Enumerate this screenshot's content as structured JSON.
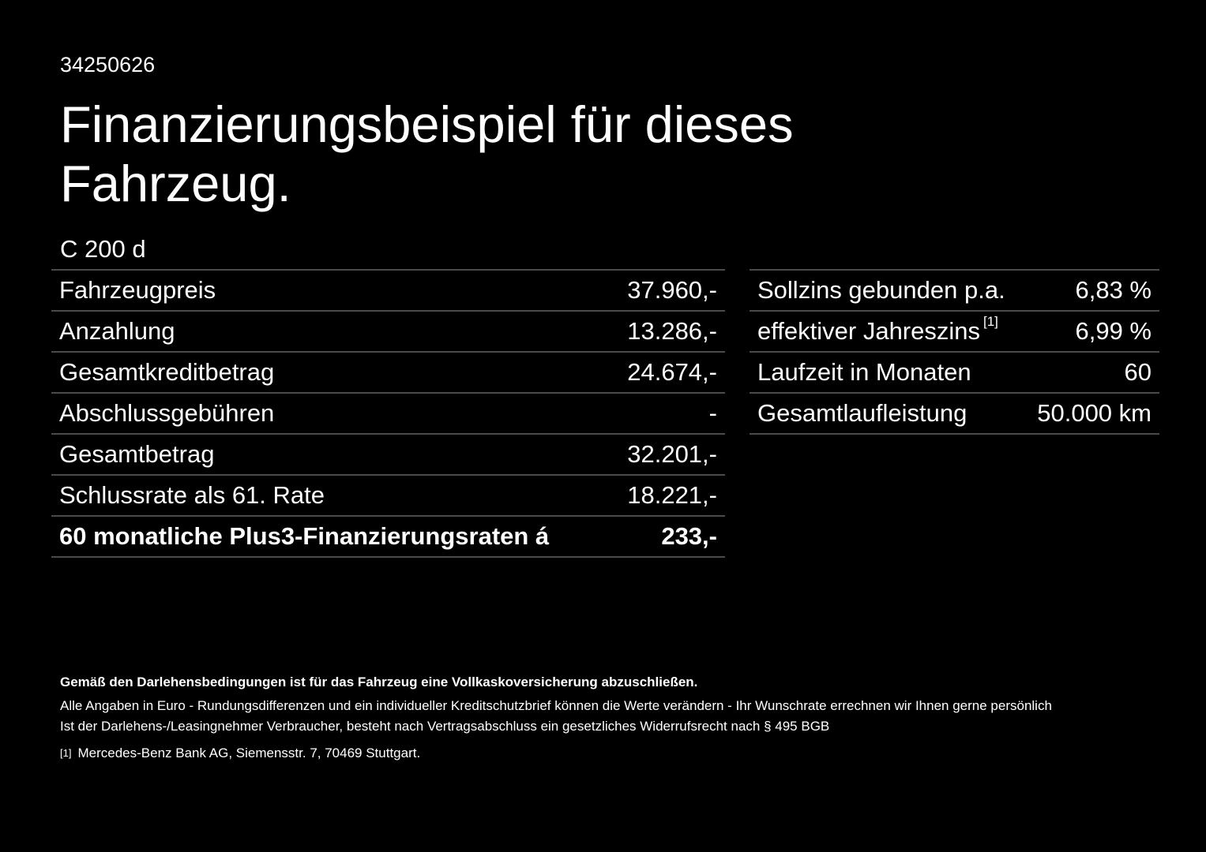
{
  "reference": "34250626",
  "title": "Finanzierungsbeispiel für dieses Fahrzeug.",
  "model": "C 200 d",
  "left_table": [
    {
      "label": "Fahrzeugpreis",
      "value": "37.960,-"
    },
    {
      "label": "Anzahlung",
      "value": "13.286,-"
    },
    {
      "label": "Gesamtkreditbetrag",
      "value": "24.674,-"
    },
    {
      "label": "Abschlussgebühren",
      "value": "-"
    },
    {
      "label": "Gesamtbetrag",
      "value": "32.201,-"
    },
    {
      "label": "Schlussrate als 61. Rate",
      "value": "18.221,-"
    },
    {
      "label": "60 monatliche Plus3-Finanzierungsraten á",
      "value": "233,-"
    }
  ],
  "right_table": [
    {
      "label": "Sollzins gebunden p.a.",
      "value": "6,83 %"
    },
    {
      "label": "effektiver Jahreszins",
      "sup": "[1]",
      "value": "6,99 %"
    },
    {
      "label": "Laufzeit in Monaten",
      "value": "60"
    },
    {
      "label": "Gesamtlaufleistung",
      "value": "50.000 km"
    }
  ],
  "footer": {
    "insurance_note": "Gemäß den Darlehensbedingungen ist für das Fahrzeug eine Vollkaskoversicherung abzuschließen.",
    "line1": "Alle Angaben in Euro - Rundungsdifferenzen und ein individueller Kreditschutzbrief können die Werte verändern - Ihr Wunschrate errechnen wir Ihnen gerne persönlich",
    "line2": "Ist der Darlehens-/Leasingnehmer Verbraucher, besteht nach Vertragsabschluss ein gesetzliches Widerrufsrecht nach § 495 BGB",
    "footnote_mark": "[1]",
    "footnote_text": "Mercedes-Benz Bank AG, Siemensstr. 7, 70469 Stuttgart."
  }
}
